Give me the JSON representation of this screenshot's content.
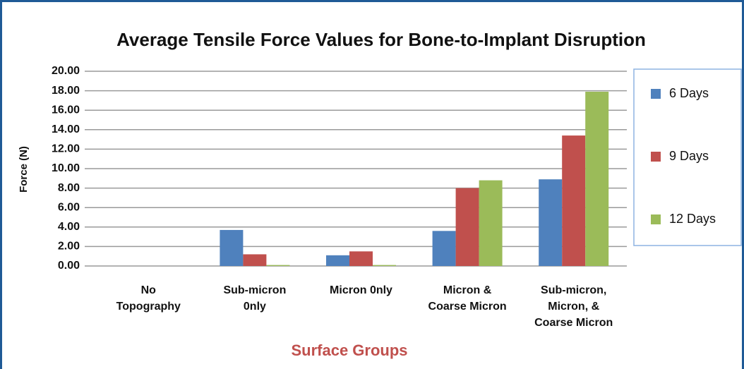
{
  "chart_data": {
    "type": "bar",
    "title": "Average Tensile Force Values for Bone-to-Implant Disruption",
    "x_label": "Surface Groups",
    "y_label": "Force (N)",
    "categories": [
      "No\nTopography",
      "Sub-micron\n0nly",
      "Micron 0nly",
      "Micron &\nCoarse Micron",
      "Sub-micron,\nMicron, &\nCoarse Micron"
    ],
    "series": [
      {
        "name": "6 Days",
        "color": "#4f81bd",
        "values": [
          0,
          3.7,
          1.1,
          3.6,
          8.9
        ]
      },
      {
        "name": "9 Days",
        "color": "#c0504d",
        "values": [
          0,
          1.2,
          1.5,
          8.0,
          13.4
        ]
      },
      {
        "name": "12 Days",
        "color": "#9bbb59",
        "values": [
          0,
          0.1,
          0.1,
          8.8,
          17.9
        ]
      }
    ],
    "ylim": [
      0,
      20
    ],
    "yticks": [
      {
        "value": 0,
        "label": "0.00"
      },
      {
        "value": 2,
        "label": "2.00"
      },
      {
        "value": 4,
        "label": "4.00"
      },
      {
        "value": 6,
        "label": "6.00"
      },
      {
        "value": 8,
        "label": "8.00"
      },
      {
        "value": 10,
        "label": "10.00"
      },
      {
        "value": 12,
        "label": "12.00"
      },
      {
        "value": 14,
        "label": "14.00"
      },
      {
        "value": 16,
        "label": "16.00"
      },
      {
        "value": 18,
        "label": "18.00"
      },
      {
        "value": 20,
        "label": "20.00"
      }
    ],
    "grid": true,
    "legend": "right"
  }
}
